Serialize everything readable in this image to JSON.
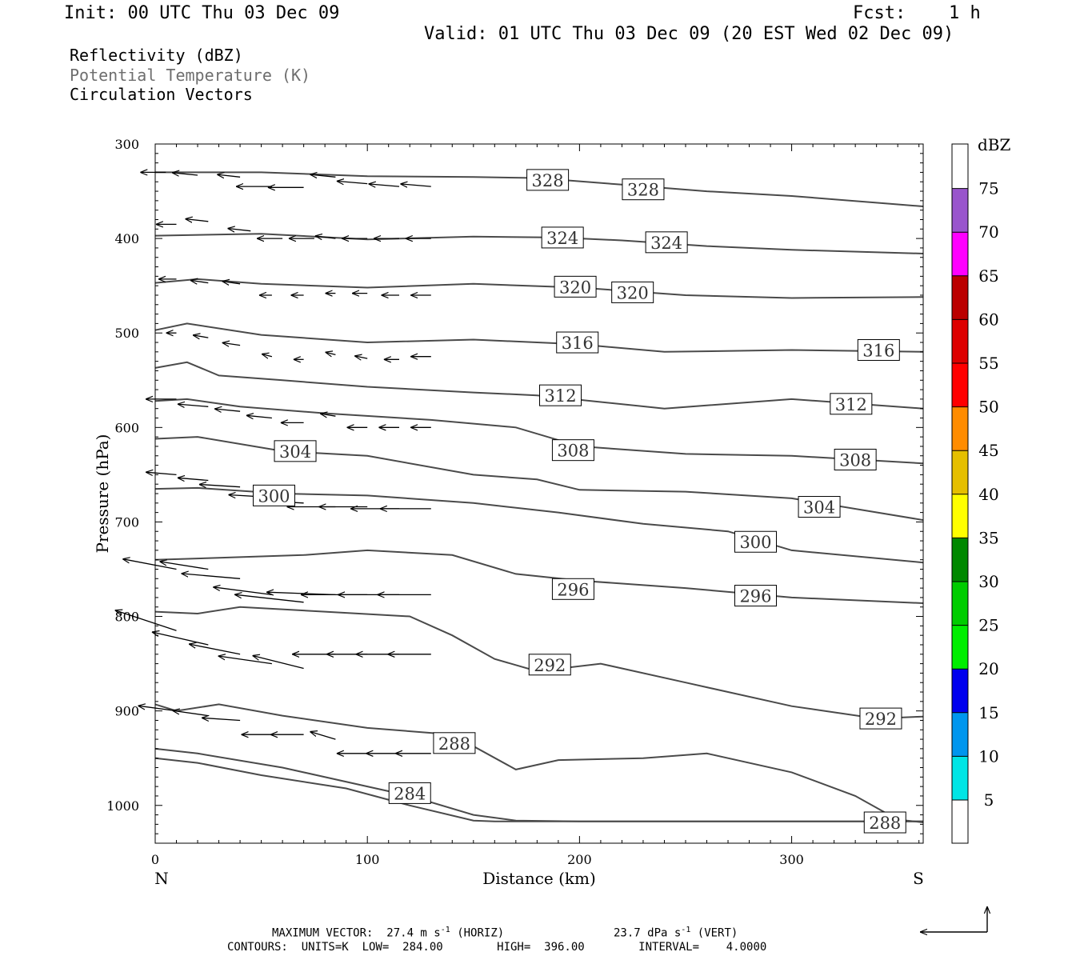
{
  "header": {
    "init": "Init: 00 UTC Thu 03 Dec 09",
    "fcst_label": "Fcst:",
    "fcst_value": "1 h",
    "valid": "Valid: 01 UTC Thu 03 Dec 09 (20 EST Wed 02 Dec 09)"
  },
  "fields": {
    "reflectivity": "Reflectivity (dBZ)",
    "theta": "Potential Temperature (K)",
    "vectors": "Circulation Vectors"
  },
  "colors": {
    "theta_contour": "#4a4a4a",
    "vector": "#000000",
    "frame": "#000000"
  },
  "chart_data": {
    "type": "line",
    "xlabel": "Distance (km)",
    "ylabel": "Pressure (hPa)",
    "xlim": [
      0,
      362
    ],
    "ylim": [
      1040,
      300
    ],
    "xticks": [
      0,
      100,
      200,
      300
    ],
    "yticks": [
      300,
      400,
      500,
      600,
      700,
      800,
      900,
      1000
    ],
    "x_end_labels": {
      "left": "N",
      "right": "S"
    },
    "colorbar": {
      "unit": "dBZ",
      "ticks": [
        5,
        10,
        15,
        20,
        25,
        30,
        35,
        40,
        45,
        50,
        55,
        60,
        65,
        70,
        75
      ],
      "colors": [
        "#ffffff",
        "#00e5e5",
        "#0096ee",
        "#0000ee",
        "#00ee00",
        "#00cc00",
        "#008800",
        "#ffff00",
        "#e5bf00",
        "#ff8c00",
        "#ff0000",
        "#dd0000",
        "#bb0000",
        "#ff00ff",
        "#9955cc",
        "#ffffff"
      ]
    },
    "series": [
      {
        "label": "328",
        "x": [
          0,
          50,
          100,
          150,
          180,
          220,
          260,
          300,
          362
        ],
        "p": [
          330,
          330,
          334,
          335,
          336,
          343,
          350,
          355,
          366
        ]
      },
      {
        "label": "324",
        "x": [
          0,
          50,
          100,
          150,
          190,
          220,
          260,
          300,
          362
        ],
        "p": [
          397,
          395,
          401,
          398,
          399,
          402,
          408,
          412,
          416
        ]
      },
      {
        "label": "320",
        "x": [
          0,
          20,
          50,
          100,
          150,
          200,
          250,
          300,
          362
        ],
        "p": [
          447,
          443,
          448,
          452,
          448,
          452,
          460,
          463,
          462
        ]
      },
      {
        "label": "316",
        "x": [
          0,
          15,
          50,
          100,
          150,
          200,
          240,
          300,
          362
        ],
        "p": [
          497,
          490,
          502,
          510,
          507,
          512,
          520,
          518,
          520
        ]
      },
      {
        "label": "312",
        "x": [
          0,
          15,
          30,
          60,
          100,
          150,
          180,
          240,
          300,
          362
        ],
        "p": [
          537,
          531,
          545,
          550,
          557,
          563,
          566,
          580,
          570,
          580
        ]
      },
      {
        "label": "308",
        "x": [
          0,
          15,
          40,
          80,
          130,
          170,
          200,
          250,
          300,
          362
        ],
        "p": [
          572,
          570,
          578,
          585,
          592,
          600,
          620,
          628,
          630,
          638
        ]
      },
      {
        "label": "304",
        "x": [
          0,
          20,
          60,
          100,
          150,
          180,
          200,
          250,
          300,
          362
        ],
        "p": [
          612,
          610,
          625,
          630,
          650,
          655,
          666,
          668,
          675,
          698
        ]
      },
      {
        "label": "300",
        "x": [
          0,
          20,
          60,
          100,
          150,
          190,
          230,
          270,
          300,
          362
        ],
        "p": [
          665,
          664,
          670,
          672,
          680,
          690,
          702,
          710,
          730,
          743
        ]
      },
      {
        "label": "296",
        "x": [
          0,
          30,
          70,
          100,
          140,
          170,
          200,
          250,
          300,
          362
        ],
        "p": [
          740,
          738,
          735,
          730,
          735,
          755,
          762,
          770,
          780,
          786
        ]
      },
      {
        "label": "292",
        "x": [
          0,
          20,
          40,
          80,
          120,
          140,
          160,
          180,
          210,
          250,
          300,
          340,
          362
        ],
        "p": [
          795,
          797,
          790,
          795,
          800,
          820,
          845,
          858,
          850,
          870,
          895,
          908,
          906
        ]
      },
      {
        "label": "288",
        "x": [
          0,
          10,
          30,
          60,
          100,
          140,
          170,
          190,
          230,
          260,
          300,
          330,
          350,
          362
        ],
        "p": [
          893,
          900,
          893,
          905,
          918,
          925,
          962,
          952,
          950,
          945,
          965,
          990,
          1015,
          1018
        ]
      },
      {
        "label": "284",
        "x": [
          0,
          20,
          60,
          100,
          120,
          150,
          170,
          200,
          362
        ],
        "p": [
          940,
          945,
          960,
          980,
          990,
          1010,
          1016,
          1017,
          1017
        ]
      },
      {
        "label": "",
        "x": [
          0,
          20,
          50,
          90,
          120,
          150,
          160,
          200,
          362
        ],
        "p": [
          950,
          955,
          968,
          982,
          1000,
          1016,
          1017,
          1017,
          1017
        ]
      }
    ],
    "contour_labels": [
      {
        "text": "328",
        "x": 185,
        "p": 338
      },
      {
        "text": "328",
        "x": 230,
        "p": 348
      },
      {
        "text": "324",
        "x": 192,
        "p": 399
      },
      {
        "text": "324",
        "x": 241,
        "p": 404
      },
      {
        "text": "320",
        "x": 198,
        "p": 451
      },
      {
        "text": "320",
        "x": 225,
        "p": 457
      },
      {
        "text": "316",
        "x": 199,
        "p": 510
      },
      {
        "text": "316",
        "x": 341,
        "p": 518
      },
      {
        "text": "312",
        "x": 191,
        "p": 566
      },
      {
        "text": "312",
        "x": 328,
        "p": 575
      },
      {
        "text": "308",
        "x": 197,
        "p": 624
      },
      {
        "text": "308",
        "x": 330,
        "p": 634
      },
      {
        "text": "304",
        "x": 66,
        "p": 625
      },
      {
        "text": "304",
        "x": 313,
        "p": 684
      },
      {
        "text": "300",
        "x": 56,
        "p": 672
      },
      {
        "text": "300",
        "x": 283,
        "p": 721
      },
      {
        "text": "296",
        "x": 197,
        "p": 771
      },
      {
        "text": "296",
        "x": 283,
        "p": 778
      },
      {
        "text": "292",
        "x": 186,
        "p": 851
      },
      {
        "text": "292",
        "x": 342,
        "p": 908
      },
      {
        "text": "288",
        "x": 141,
        "p": 934
      },
      {
        "text": "288",
        "x": 344,
        "p": 1018
      },
      {
        "text": "284",
        "x": 120,
        "p": 987
      }
    ],
    "vectors": [
      [
        5,
        330,
        -10,
        0
      ],
      [
        20,
        333,
        -10,
        -1
      ],
      [
        40,
        335,
        -9,
        -1
      ],
      [
        55,
        345,
        -14,
        0
      ],
      [
        70,
        346,
        -14,
        0
      ],
      [
        85,
        335,
        -10,
        -1
      ],
      [
        100,
        342,
        -12,
        -1
      ],
      [
        115,
        345,
        -12,
        -1
      ],
      [
        130,
        345,
        -12,
        -1
      ],
      [
        10,
        385,
        -8,
        0
      ],
      [
        25,
        382,
        -9,
        -1
      ],
      [
        45,
        392,
        -9,
        -1
      ],
      [
        60,
        400,
        -10,
        0
      ],
      [
        75,
        400,
        -10,
        0
      ],
      [
        85,
        400,
        -8,
        -1
      ],
      [
        100,
        400,
        -10,
        0
      ],
      [
        115,
        400,
        -10,
        0
      ],
      [
        130,
        400,
        -10,
        0
      ],
      [
        10,
        443,
        -7,
        0
      ],
      [
        25,
        447,
        -7,
        -1
      ],
      [
        40,
        448,
        -7,
        -1
      ],
      [
        55,
        460,
        -5,
        0
      ],
      [
        70,
        460,
        -5,
        0
      ],
      [
        85,
        458,
        -4,
        0
      ],
      [
        100,
        458,
        -6,
        0
      ],
      [
        115,
        460,
        -7,
        0
      ],
      [
        130,
        460,
        -8,
        0
      ],
      [
        10,
        500,
        -4,
        0
      ],
      [
        25,
        505,
        -6,
        -1
      ],
      [
        40,
        513,
        -7,
        -1
      ],
      [
        55,
        525,
        -4,
        -1
      ],
      [
        70,
        528,
        -4,
        0
      ],
      [
        85,
        523,
        -4,
        -1
      ],
      [
        100,
        527,
        -5,
        -1
      ],
      [
        115,
        528,
        -6,
        0
      ],
      [
        130,
        525,
        -8,
        0
      ],
      [
        10,
        570,
        -12,
        0
      ],
      [
        25,
        578,
        -12,
        -1
      ],
      [
        40,
        583,
        -10,
        -1
      ],
      [
        55,
        590,
        -10,
        -1
      ],
      [
        70,
        595,
        -9,
        0
      ],
      [
        85,
        588,
        -6,
        -1
      ],
      [
        100,
        600,
        -8,
        0
      ],
      [
        115,
        600,
        -8,
        0
      ],
      [
        130,
        600,
        -8,
        0
      ],
      [
        10,
        650,
        -12,
        -1
      ],
      [
        25,
        656,
        -12,
        -1
      ],
      [
        40,
        663,
        -16,
        -1
      ],
      [
        55,
        674,
        -17,
        -1
      ],
      [
        70,
        680,
        -18,
        -1
      ],
      [
        85,
        684,
        -19,
        0
      ],
      [
        100,
        684,
        -19,
        0
      ],
      [
        115,
        686,
        -19,
        0
      ],
      [
        130,
        686,
        -20,
        0
      ],
      [
        10,
        750,
        -21,
        -4
      ],
      [
        25,
        750,
        -19,
        -3
      ],
      [
        40,
        760,
        -23,
        -2
      ],
      [
        55,
        777,
        -23,
        -3
      ],
      [
        70,
        785,
        -27,
        -3
      ],
      [
        85,
        777,
        -27,
        -1
      ],
      [
        100,
        777,
        -26,
        0
      ],
      [
        115,
        777,
        -24,
        0
      ],
      [
        130,
        777,
        -21,
        0
      ],
      [
        10,
        815,
        -24,
        -8
      ],
      [
        25,
        830,
        -22,
        -5
      ],
      [
        40,
        840,
        -20,
        -4
      ],
      [
        55,
        850,
        -21,
        -3
      ],
      [
        70,
        855,
        -20,
        -5
      ],
      [
        85,
        840,
        -17,
        0
      ],
      [
        100,
        840,
        -16,
        0
      ],
      [
        115,
        840,
        -17,
        0
      ],
      [
        130,
        840,
        -17,
        0
      ],
      [
        10,
        900,
        -15,
        -2
      ],
      [
        25,
        905,
        -14,
        -2
      ],
      [
        40,
        910,
        -15,
        -1
      ],
      [
        55,
        925,
        -12,
        0
      ],
      [
        70,
        925,
        -13,
        0
      ],
      [
        85,
        930,
        -10,
        -3
      ],
      [
        100,
        945,
        -12,
        0
      ],
      [
        115,
        945,
        -13,
        0
      ],
      [
        130,
        945,
        -14,
        0
      ]
    ]
  },
  "footer": {
    "max_vector": "MAXIMUM VECTOR:  27.4 m s",
    "max_vector_exp": "-1",
    "max_vector_h": " (HORIZ)",
    "max_vector2": "23.7 dPa s",
    "max_vector2_exp": "-1",
    "max_vector2_v": " (VERT)",
    "contours": "CONTOURS:  UNITS=K  LOW=  284.00        HIGH=  396.00        INTERVAL=    4.0000"
  }
}
